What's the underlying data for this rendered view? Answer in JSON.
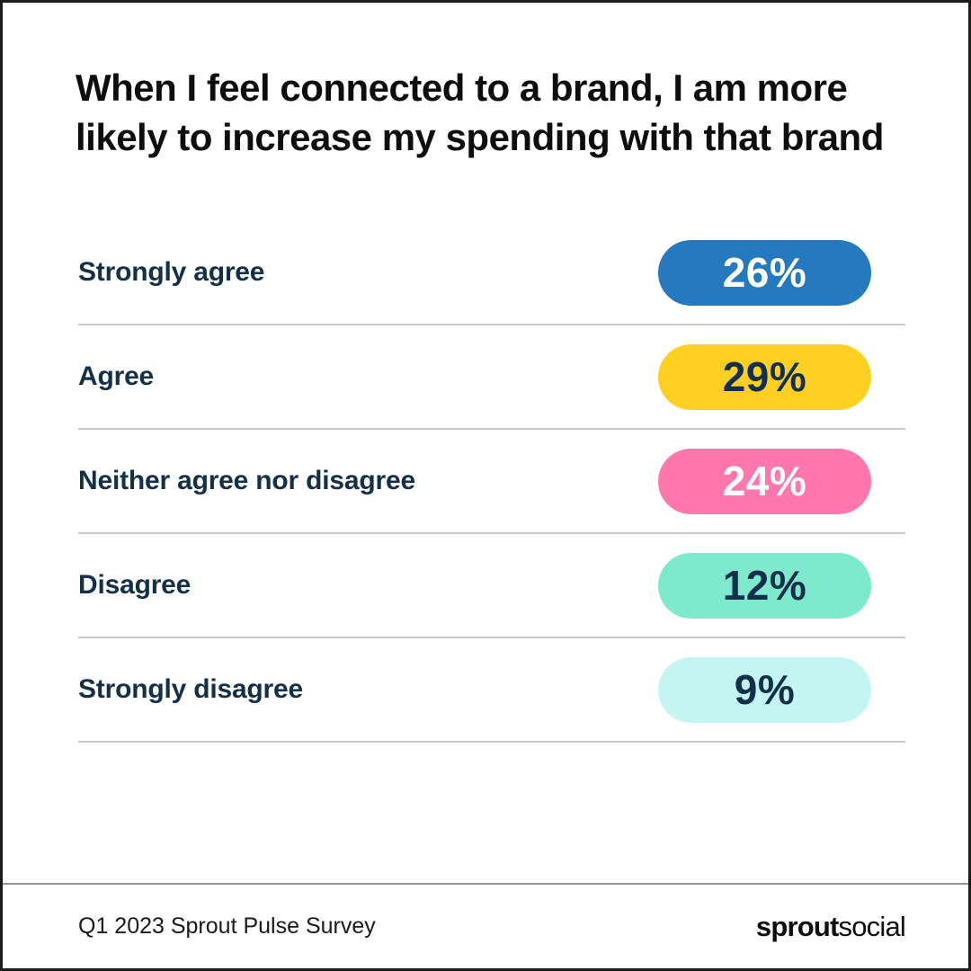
{
  "title": "When I feel connected to a brand, I am more likely to increase my spending with that brand",
  "rows": [
    {
      "label": "Strongly agree",
      "value": "26%",
      "pill_bg": "#2579BF",
      "pill_text": "#FFFFFF"
    },
    {
      "label": "Agree",
      "value": "29%",
      "pill_bg": "#FFD021",
      "pill_text": "#13304A"
    },
    {
      "label": "Neither agree nor disagree",
      "value": "24%",
      "pill_bg": "#FF77AC",
      "pill_text": "#FFFFFF"
    },
    {
      "label": "Disagree",
      "value": "12%",
      "pill_bg": "#7EEACD",
      "pill_text": "#13304A"
    },
    {
      "label": "Strongly disagree",
      "value": "9%",
      "pill_bg": "#C3F5F3",
      "pill_text": "#13304A"
    }
  ],
  "footer": {
    "source": "Q1 2023 Sprout Pulse Survey",
    "logo_bold": "sprout",
    "logo_regular": "social"
  },
  "colors": {
    "frame_border": "#1c1c1c",
    "label_navy": "#13304A",
    "row_divider": "#c9c9c9",
    "footer_divider": "#949494",
    "background": "#ffffff"
  },
  "chart_data": {
    "type": "bar",
    "orientation": "horizontal",
    "title": "When I feel connected to a brand, I am more likely to increase my spending with that brand",
    "categories": [
      "Strongly agree",
      "Agree",
      "Neither agree nor disagree",
      "Disagree",
      "Strongly disagree"
    ],
    "values": [
      26,
      29,
      24,
      12,
      9
    ],
    "unit": "%",
    "value_labels": [
      "26%",
      "29%",
      "24%",
      "12%",
      "9%"
    ],
    "bar_colors": [
      "#2579BF",
      "#FFD021",
      "#FF77AC",
      "#7EEACD",
      "#C3F5F3"
    ],
    "layout_hint": "equal-width value pills right-aligned, category labels left, gray divider under each row",
    "source": "Q1 2023 Sprout Pulse Survey",
    "brand": "sproutsocial"
  }
}
